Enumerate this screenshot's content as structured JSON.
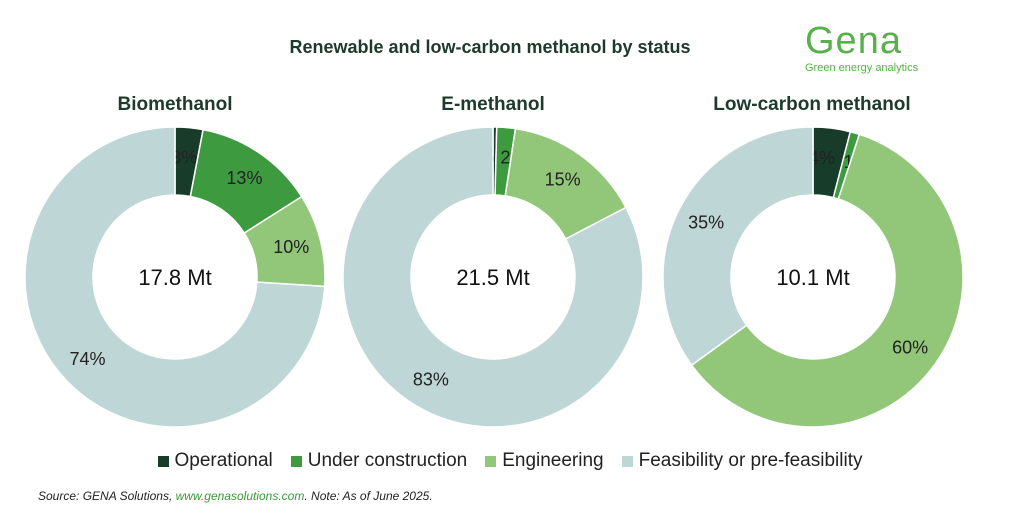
{
  "page_title": "Renewable and low-carbon methanol by status",
  "logo": {
    "name": "Gena",
    "tagline": "Green energy analytics"
  },
  "colors": {
    "operational": "#173c2a",
    "under_construction": "#3d9a3f",
    "engineering": "#92c77a",
    "feasibility": "#bfd6d6"
  },
  "legend": [
    {
      "label": "Operational",
      "color_key": "operational"
    },
    {
      "label": "Under construction",
      "color_key": "under_construction"
    },
    {
      "label": "Engineering",
      "color_key": "engineering"
    },
    {
      "label": "Feasibility or pre-feasibility",
      "color_key": "feasibility"
    }
  ],
  "chart_data": [
    {
      "type": "pie",
      "title": "Biomethanol",
      "center_label": "17.8 Mt",
      "categories": [
        "Operational",
        "Under construction",
        "Engineering",
        "Feasibility or pre-feasibility"
      ],
      "values": [
        3,
        13,
        10,
        74
      ],
      "labels": [
        "3%",
        "13%",
        "10%",
        "74%"
      ]
    },
    {
      "type": "pie",
      "title": "E-methanol",
      "center_label": "21.5 Mt",
      "categories": [
        "Operational",
        "Under construction",
        "Engineering",
        "Feasibility or pre-feasibility"
      ],
      "values": [
        0.4,
        2,
        15,
        83
      ],
      "labels": [
        "0.4%",
        "2%",
        "15%",
        "83%"
      ]
    },
    {
      "type": "pie",
      "title": "Low-carbon methanol",
      "center_label": "10.1 Mt",
      "categories": [
        "Operational",
        "Under construction",
        "Engineering",
        "Feasibility or pre-feasibility"
      ],
      "values": [
        4,
        1,
        60,
        35
      ],
      "labels": [
        "4%",
        "1%",
        "60%",
        "35%"
      ]
    }
  ],
  "source": {
    "prefix": "Source: GENA Solutions, ",
    "link": "www.genasolutions.com",
    "suffix": ". Note: As of June 2025."
  }
}
